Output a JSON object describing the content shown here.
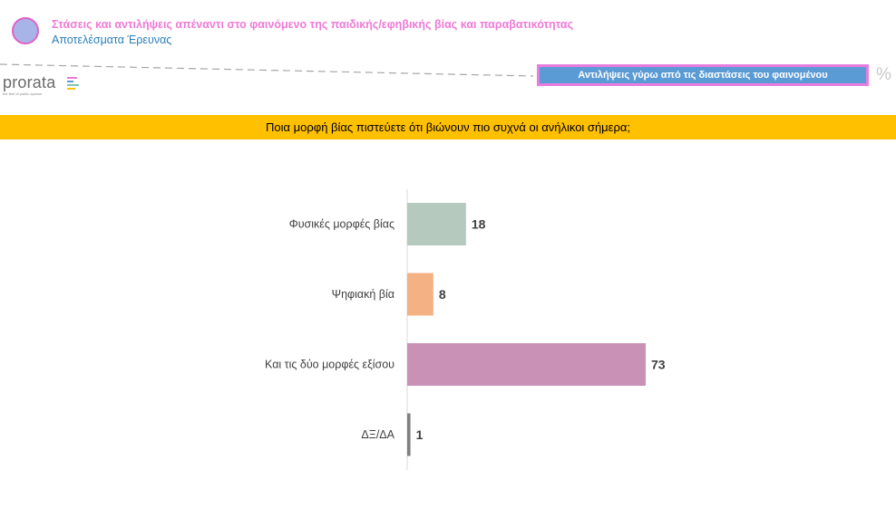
{
  "header": {
    "title": "Στάσεις και αντιλήψεις απέναντι στο φαινόμενο της παιδικής/εφηβικής βίας και παραβατικότητας",
    "subtitle": "Αποτελέσματα Έρευνας"
  },
  "section_label": "Αντιλήψεις γύρω από τις διαστάσεις του φαινομένου",
  "unit_label": "%",
  "brand": {
    "name": "prorata",
    "tagline": "the feel of public opinion"
  },
  "question": "Ποια μορφή βίας πιστεύετε ότι βιώνουν πιο συχνά οι ανήλικοι σήμερα;",
  "colors": {
    "accent_pink": "#f07ad6",
    "accent_blue": "#2a7fb8",
    "question_bg": "#ffc000",
    "section_bg": "#5b9bd5"
  },
  "chart_data": {
    "type": "bar",
    "orientation": "horizontal",
    "categories": [
      "Φυσικές μορφές βίας",
      "Ψηφιακή βία",
      "Και τις δύο μορφές εξίσου",
      "ΔΞ/ΔΑ"
    ],
    "values": [
      18,
      8,
      73,
      1
    ],
    "colors": [
      "#b5c9bf",
      "#f4b183",
      "#c991b6",
      "#7f7f7f"
    ],
    "xlim": [
      0,
      100
    ],
    "grid": false,
    "legend": "none"
  }
}
